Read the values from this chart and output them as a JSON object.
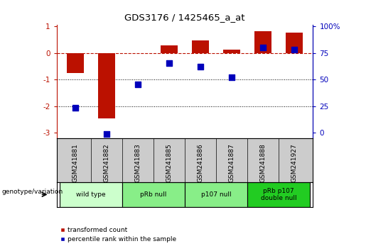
{
  "title": "GDS3176 / 1425465_a_at",
  "samples": [
    "GSM241881",
    "GSM241882",
    "GSM241883",
    "GSM241885",
    "GSM241886",
    "GSM241887",
    "GSM241888",
    "GSM241927"
  ],
  "bar_values": [
    -0.75,
    -2.45,
    0.0,
    0.28,
    0.48,
    0.12,
    0.82,
    0.78
  ],
  "dot_values": [
    -2.05,
    -3.05,
    -1.18,
    -0.38,
    -0.52,
    -0.92,
    0.22,
    0.12
  ],
  "bar_color": "#bb1100",
  "dot_color": "#0000bb",
  "ylim": [
    -3.2,
    1.05
  ],
  "left_yticks": [
    1,
    0,
    -1,
    -2,
    -3
  ],
  "right_yticks": [
    100,
    75,
    50,
    25,
    0
  ],
  "right_ytick_positions": [
    1.0,
    0.0,
    -1.0,
    -2.0,
    -3.0
  ],
  "genotype_groups": [
    {
      "label": "wild type",
      "start": 0,
      "end": 1,
      "color": "#ccffcc"
    },
    {
      "label": "pRb null",
      "start": 2,
      "end": 3,
      "color": "#88ee88"
    },
    {
      "label": "p107 null",
      "start": 4,
      "end": 5,
      "color": "#88ee88"
    },
    {
      "label": "pRb p107\ndouble null",
      "start": 6,
      "end": 7,
      "color": "#22cc22"
    }
  ],
  "legend_bar_label": "transformed count",
  "legend_dot_label": "percentile rank within the sample",
  "genotype_label": "genotype/variation",
  "sample_box_color": "#cccccc",
  "bg_color": "white"
}
